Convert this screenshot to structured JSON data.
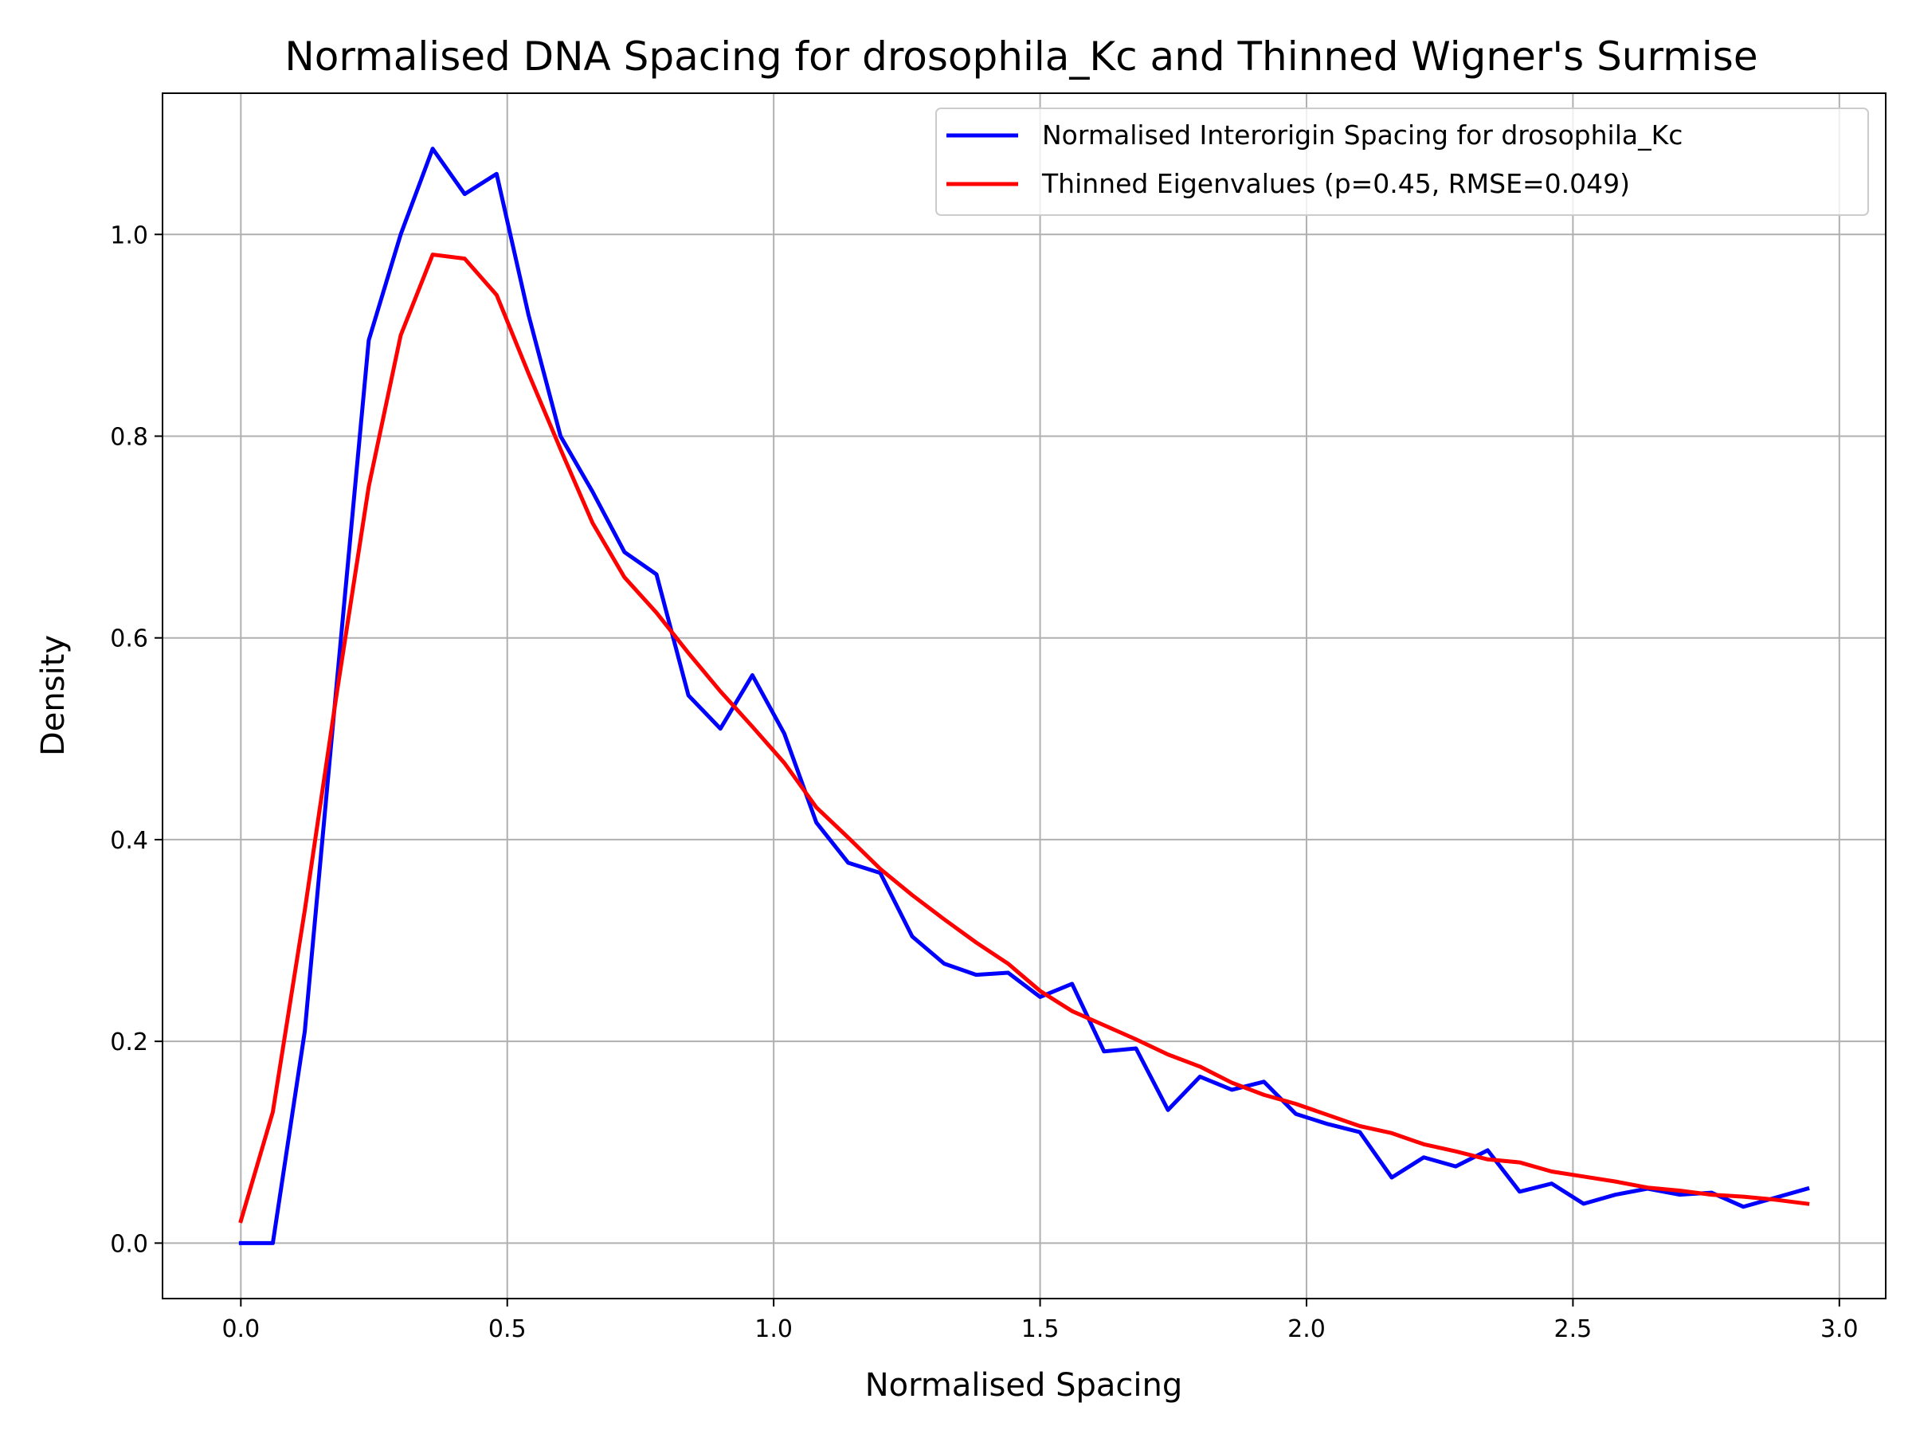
{
  "chart_data": {
    "type": "line",
    "title": "Normalised DNA Spacing for drosophila_Kc and Thinned Wigner's Surmise",
    "xlabel": "Normalised Spacing",
    "ylabel": "Density",
    "xlim": [
      -0.147,
      3.087
    ],
    "ylim": [
      -0.055,
      1.14
    ],
    "grid": true,
    "legend_position": "top-right",
    "x_ticks": [
      0.0,
      0.5,
      1.0,
      1.5,
      2.0,
      2.5,
      3.0
    ],
    "x_tick_labels": [
      "0.0",
      "0.5",
      "1.0",
      "1.5",
      "2.0",
      "2.5",
      "3.0"
    ],
    "y_ticks": [
      0.0,
      0.2,
      0.4,
      0.6,
      0.8,
      1.0
    ],
    "y_tick_labels": [
      "0.0",
      "0.2",
      "0.4",
      "0.6",
      "0.8",
      "1.0"
    ],
    "series": [
      {
        "name": "Normalised Interorigin Spacing for drosophila_Kc",
        "color": "#0000ff",
        "x": [
          0.0,
          0.06,
          0.12,
          0.18,
          0.24,
          0.3,
          0.36,
          0.42,
          0.48,
          0.54,
          0.6,
          0.66,
          0.72,
          0.78,
          0.84,
          0.9,
          0.96,
          1.02,
          1.08,
          1.14,
          1.2,
          1.26,
          1.32,
          1.38,
          1.44,
          1.5,
          1.56,
          1.62,
          1.68,
          1.74,
          1.8,
          1.86,
          1.92,
          1.98,
          2.04,
          2.1,
          2.16,
          2.22,
          2.28,
          2.34,
          2.4,
          2.46,
          2.52,
          2.58,
          2.64,
          2.7,
          2.76,
          2.82,
          2.88,
          2.94
        ],
        "y": [
          0.0,
          0.0,
          0.21,
          0.555,
          0.895,
          1.0,
          1.085,
          1.04,
          1.06,
          0.92,
          0.8,
          0.745,
          0.685,
          0.663,
          0.543,
          0.51,
          0.563,
          0.505,
          0.417,
          0.377,
          0.367,
          0.304,
          0.277,
          0.266,
          0.268,
          0.244,
          0.257,
          0.19,
          0.193,
          0.132,
          0.165,
          0.152,
          0.16,
          0.128,
          0.118,
          0.11,
          0.065,
          0.085,
          0.076,
          0.092,
          0.051,
          0.059,
          0.039,
          0.048,
          0.054,
          0.048,
          0.05,
          0.036,
          0.045,
          0.054
        ]
      },
      {
        "name": "Thinned Eigenvalues (p=0.45, RMSE=0.049)",
        "color": "#ff0000",
        "x": [
          0.0,
          0.06,
          0.12,
          0.18,
          0.24,
          0.3,
          0.36,
          0.42,
          0.48,
          0.54,
          0.6,
          0.66,
          0.72,
          0.78,
          0.84,
          0.9,
          0.96,
          1.02,
          1.08,
          1.14,
          1.2,
          1.26,
          1.32,
          1.38,
          1.44,
          1.5,
          1.56,
          1.62,
          1.68,
          1.74,
          1.8,
          1.86,
          1.92,
          1.98,
          2.04,
          2.1,
          2.16,
          2.22,
          2.28,
          2.34,
          2.4,
          2.46,
          2.52,
          2.58,
          2.64,
          2.7,
          2.76,
          2.82,
          2.88,
          2.94
        ],
        "y": [
          0.022,
          0.13,
          0.33,
          0.545,
          0.75,
          0.9,
          0.98,
          0.976,
          0.94,
          0.862,
          0.787,
          0.714,
          0.66,
          0.625,
          0.585,
          0.547,
          0.512,
          0.476,
          0.432,
          0.402,
          0.371,
          0.345,
          0.321,
          0.298,
          0.277,
          0.25,
          0.23,
          0.216,
          0.202,
          0.187,
          0.175,
          0.159,
          0.147,
          0.138,
          0.127,
          0.116,
          0.109,
          0.098,
          0.091,
          0.083,
          0.08,
          0.071,
          0.066,
          0.061,
          0.055,
          0.052,
          0.048,
          0.046,
          0.043,
          0.039
        ]
      }
    ]
  }
}
